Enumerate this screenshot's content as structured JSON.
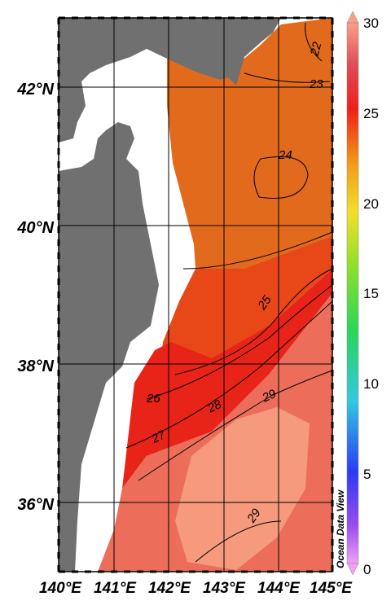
{
  "map": {
    "longitude_labels": [
      "140°E",
      "141°E",
      "142°E",
      "143°E",
      "144°E",
      "145°E"
    ],
    "latitude_labels": [
      "42°N",
      "40°N",
      "38°N",
      "36°N"
    ],
    "contour_labels": [
      "22",
      "23",
      "24",
      "25",
      "26",
      "27",
      "28",
      "29",
      "29"
    ],
    "watermark": "Ocean Data View",
    "land_color": "#707070"
  },
  "colorbar": {
    "ticks": [
      "30",
      "25",
      "20",
      "15",
      "10",
      "5",
      "0"
    ],
    "range": [
      0,
      30
    ]
  }
}
